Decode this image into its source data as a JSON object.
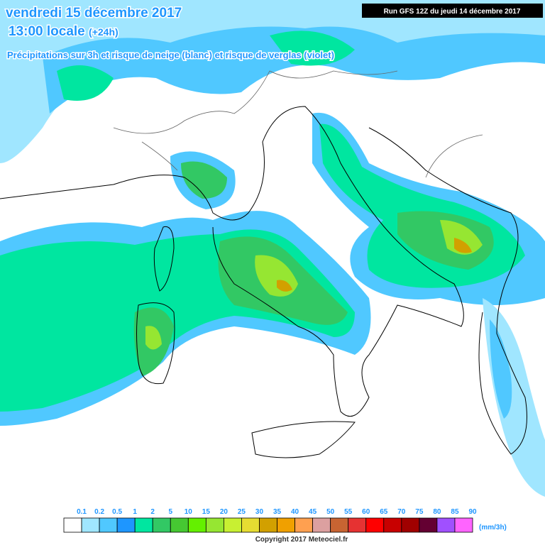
{
  "header": {
    "date": "vendredi 15 décembre 2017",
    "time": "13:00 locale",
    "lead": "(+24h)",
    "run": "Run GFS 12Z du jeudi 14 décembre 2017",
    "subtitle": "Précipitations sur 3h et risque de neige (blanc) et risque de verglas (violet)"
  },
  "legend": {
    "labels": [
      "0.1",
      "0.2",
      "0.5",
      "1",
      "2",
      "5",
      "10",
      "15",
      "20",
      "25",
      "30",
      "35",
      "40",
      "45",
      "50",
      "55",
      "60",
      "65",
      "70",
      "75",
      "80",
      "85",
      "90"
    ],
    "colors": [
      "#ffffff",
      "#a0e6ff",
      "#50c8ff",
      "#1e96ff",
      "#00e6a0",
      "#32c864",
      "#46c832",
      "#64f000",
      "#96e632",
      "#c8f032",
      "#e6dc32",
      "#d2a000",
      "#f0a000",
      "#ffa050",
      "#dca0a0",
      "#c86432",
      "#e63232",
      "#ff0000",
      "#c80000",
      "#a00000",
      "#640032",
      "#a050ff",
      "#ff64ff"
    ],
    "unit": "(mm/3h)"
  },
  "footer": {
    "copyright": "Copyright 2017 Meteociel.fr"
  }
}
